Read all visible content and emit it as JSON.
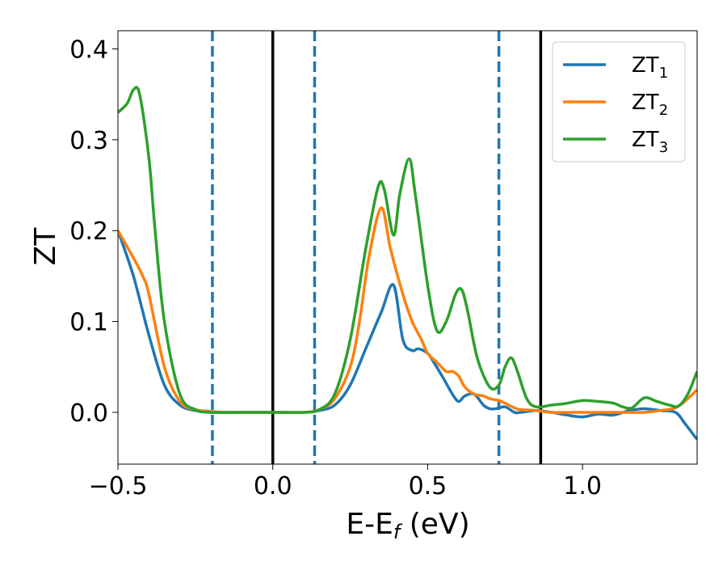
{
  "chart_data": {
    "type": "line",
    "title": "",
    "xlabel": "E-E",
    "xlabel_sub": "f",
    "xlabel_unit": " (eV)",
    "ylabel": "ZT",
    "xlim": [
      -0.5,
      1.37
    ],
    "ylim": [
      -0.057,
      0.42
    ],
    "xticks": [
      -0.5,
      0.0,
      0.5,
      1.0
    ],
    "xtick_labels": [
      "−0.5",
      "0.0",
      "0.5",
      "1.0"
    ],
    "yticks": [
      0.0,
      0.1,
      0.2,
      0.3,
      0.4
    ],
    "ytick_labels": [
      "0.0",
      "0.1",
      "0.2",
      "0.3",
      "0.4"
    ],
    "grid": false,
    "legend_position": "top-right",
    "vlines": [
      {
        "x": -0.195,
        "style": "dashed",
        "color": "#1f77b4"
      },
      {
        "x": 0.0,
        "style": "solid",
        "color": "#000000"
      },
      {
        "x": 0.135,
        "style": "dashed",
        "color": "#1f77b4"
      },
      {
        "x": 0.73,
        "style": "dashed",
        "color": "#1f77b4"
      },
      {
        "x": 0.865,
        "style": "solid",
        "color": "#000000"
      }
    ],
    "series": [
      {
        "name": "ZT",
        "sub": "1",
        "color": "#1f77b4",
        "x": [
          -0.5,
          -0.45,
          -0.4,
          -0.35,
          -0.3,
          -0.25,
          -0.2,
          -0.15,
          -0.1,
          0.0,
          0.1,
          0.15,
          0.2,
          0.25,
          0.3,
          0.35,
          0.39,
          0.42,
          0.45,
          0.47,
          0.5,
          0.52,
          0.55,
          0.58,
          0.6,
          0.62,
          0.65,
          0.68,
          0.7,
          0.72,
          0.75,
          0.78,
          0.8,
          0.85,
          0.9,
          0.95,
          1.0,
          1.05,
          1.1,
          1.15,
          1.2,
          1.25,
          1.3,
          1.33,
          1.37
        ],
        "y": [
          0.2,
          0.15,
          0.085,
          0.03,
          0.008,
          0.002,
          0.0,
          0.0,
          0.0,
          0.0,
          0.0,
          0.002,
          0.008,
          0.03,
          0.07,
          0.11,
          0.14,
          0.08,
          0.068,
          0.07,
          0.065,
          0.055,
          0.038,
          0.02,
          0.012,
          0.018,
          0.02,
          0.008,
          0.004,
          0.004,
          0.006,
          0.0,
          0.0,
          0.002,
          0.0,
          -0.003,
          -0.005,
          -0.002,
          -0.003,
          0.002,
          0.004,
          0.002,
          0.0,
          -0.012,
          -0.03
        ]
      },
      {
        "name": "ZT",
        "sub": "2",
        "color": "#ff7f0e",
        "x": [
          -0.5,
          -0.45,
          -0.42,
          -0.4,
          -0.35,
          -0.3,
          -0.25,
          -0.2,
          -0.15,
          -0.1,
          0.0,
          0.1,
          0.15,
          0.2,
          0.25,
          0.28,
          0.31,
          0.35,
          0.38,
          0.42,
          0.45,
          0.48,
          0.5,
          0.53,
          0.56,
          0.58,
          0.6,
          0.62,
          0.65,
          0.68,
          0.7,
          0.73,
          0.75,
          0.78,
          0.8,
          0.85,
          0.9,
          1.0,
          1.1,
          1.2,
          1.25,
          1.3,
          1.34,
          1.37
        ],
        "y": [
          0.2,
          0.17,
          0.15,
          0.13,
          0.05,
          0.012,
          0.003,
          0.001,
          0.0,
          0.0,
          0.0,
          0.0,
          0.003,
          0.015,
          0.05,
          0.1,
          0.17,
          0.225,
          0.18,
          0.13,
          0.1,
          0.08,
          0.065,
          0.055,
          0.045,
          0.045,
          0.04,
          0.028,
          0.02,
          0.018,
          0.015,
          0.013,
          0.01,
          0.005,
          0.003,
          0.002,
          0.0,
          0.0,
          0.0,
          0.0,
          0.002,
          0.005,
          0.015,
          0.025
        ]
      },
      {
        "name": "ZT",
        "sub": "3",
        "color": "#2ca02c",
        "x": [
          -0.5,
          -0.47,
          -0.45,
          -0.43,
          -0.4,
          -0.38,
          -0.35,
          -0.3,
          -0.25,
          -0.2,
          -0.1,
          0.0,
          0.1,
          0.15,
          0.2,
          0.25,
          0.3,
          0.34,
          0.36,
          0.39,
          0.41,
          0.44,
          0.46,
          0.5,
          0.53,
          0.56,
          0.59,
          0.61,
          0.63,
          0.66,
          0.7,
          0.73,
          0.75,
          0.77,
          0.79,
          0.82,
          0.85,
          0.9,
          0.95,
          1.0,
          1.05,
          1.1,
          1.13,
          1.16,
          1.2,
          1.24,
          1.28,
          1.31,
          1.34,
          1.37
        ],
        "y": [
          0.33,
          0.34,
          0.355,
          0.35,
          0.28,
          0.2,
          0.1,
          0.02,
          0.003,
          0.0,
          0.0,
          0.0,
          0.0,
          0.003,
          0.02,
          0.08,
          0.18,
          0.248,
          0.245,
          0.195,
          0.24,
          0.279,
          0.24,
          0.14,
          0.09,
          0.1,
          0.13,
          0.135,
          0.11,
          0.06,
          0.028,
          0.03,
          0.05,
          0.06,
          0.045,
          0.015,
          0.006,
          0.008,
          0.01,
          0.013,
          0.012,
          0.01,
          0.006,
          0.005,
          0.016,
          0.012,
          0.008,
          0.007,
          0.02,
          0.045
        ]
      }
    ]
  }
}
